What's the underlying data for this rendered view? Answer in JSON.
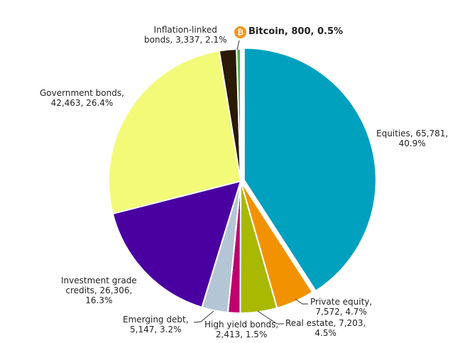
{
  "chart_data": {
    "type": "pie",
    "title": "",
    "start_angle_deg": -90,
    "direction": "clockwise",
    "slices": [
      {
        "label": "Equities",
        "value": 65781,
        "percent": 40.9,
        "color": "#00a0bf",
        "exploded": true
      },
      {
        "label": "Private equity",
        "value": 7572,
        "percent": 4.7,
        "color": "#f39200"
      },
      {
        "label": "Real estate",
        "value": 7203,
        "percent": 4.5,
        "color": "#a9b800"
      },
      {
        "label": "High yield bonds",
        "value": 2413,
        "percent": 1.5,
        "color": "#c0006f"
      },
      {
        "label": "Emerging debt",
        "value": 5147,
        "percent": 3.2,
        "color": "#b4c6d6"
      },
      {
        "label": "Investment grade credits",
        "value": 26306,
        "percent": 16.3,
        "color": "#4a00a0"
      },
      {
        "label": "Government bonds",
        "value": 42463,
        "percent": 26.4,
        "color": "#f2fa78"
      },
      {
        "label": "Inflation-linked bonds",
        "value": 3337,
        "percent": 2.1,
        "color": "#2a1a06"
      },
      {
        "label": "Bitcoin",
        "value": 800,
        "percent": 0.5,
        "color": "#3cbf3c"
      }
    ],
    "legend": "none (data labels)"
  },
  "labels": {
    "equities": [
      "Equities, 65,781,",
      "40.9%"
    ],
    "private_equity": [
      "Private equity,",
      "7,572, 4.7%"
    ],
    "real_estate": [
      "Real estate, 7,203,",
      "4.5%"
    ],
    "high_yield": [
      "High yield bonds,",
      "2,413, 1.5%"
    ],
    "emerging_debt": [
      "Emerging debt,",
      "5,147, 3.2%"
    ],
    "investment_grade": [
      "Investment grade",
      "credits, 26,306,",
      "16.3%"
    ],
    "government": [
      "Government bonds,",
      "42,463, 26.4%"
    ],
    "inflation_linked": [
      "Inflation-linked",
      "bonds, 3,337, 2.1%"
    ],
    "bitcoin": "Bitcoin, 800, 0.5%",
    "bitcoin_icon": "₿"
  }
}
